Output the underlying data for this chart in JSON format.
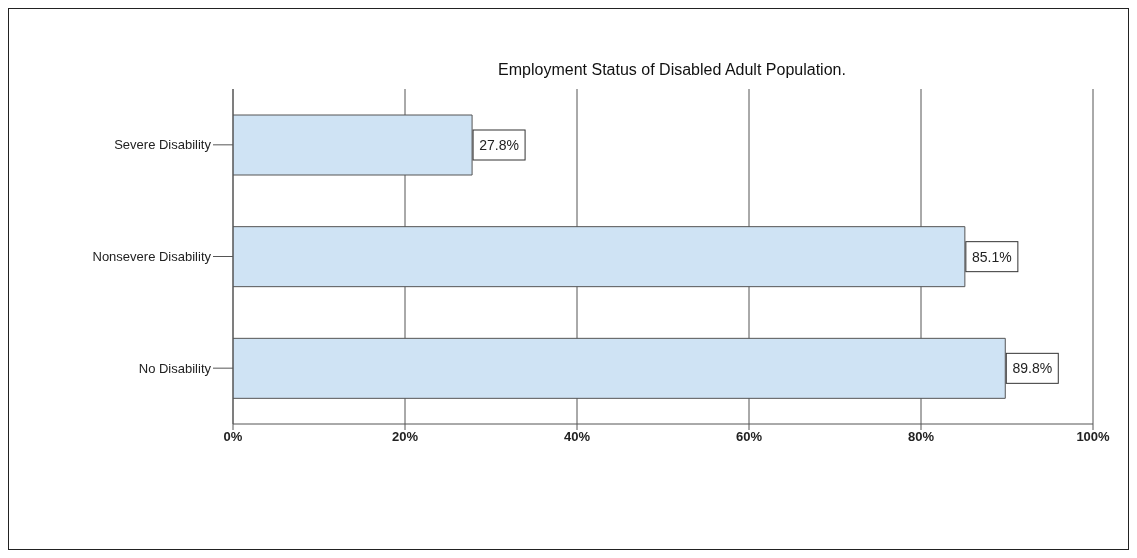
{
  "chart_data": {
    "type": "bar",
    "orientation": "horizontal",
    "title": "Employment Status of Disabled Adult Population.",
    "categories": [
      "Severe Disability",
      "Nonsevere Disability",
      "No Disability"
    ],
    "values": [
      27.8,
      85.1,
      89.8
    ],
    "value_labels": [
      "27.8%",
      "85.1%",
      "89.8%"
    ],
    "color": "#cfe3f4",
    "xlim": [
      0,
      100
    ],
    "xticks": [
      {
        "value": 0,
        "label": "0%"
      },
      {
        "value": 20,
        "label": "20%"
      },
      {
        "value": 40,
        "label": "40%"
      },
      {
        "value": 60,
        "label": "60%"
      },
      {
        "value": 80,
        "label": "80%"
      },
      {
        "value": 100,
        "label": "100%"
      }
    ],
    "grid": "x"
  }
}
